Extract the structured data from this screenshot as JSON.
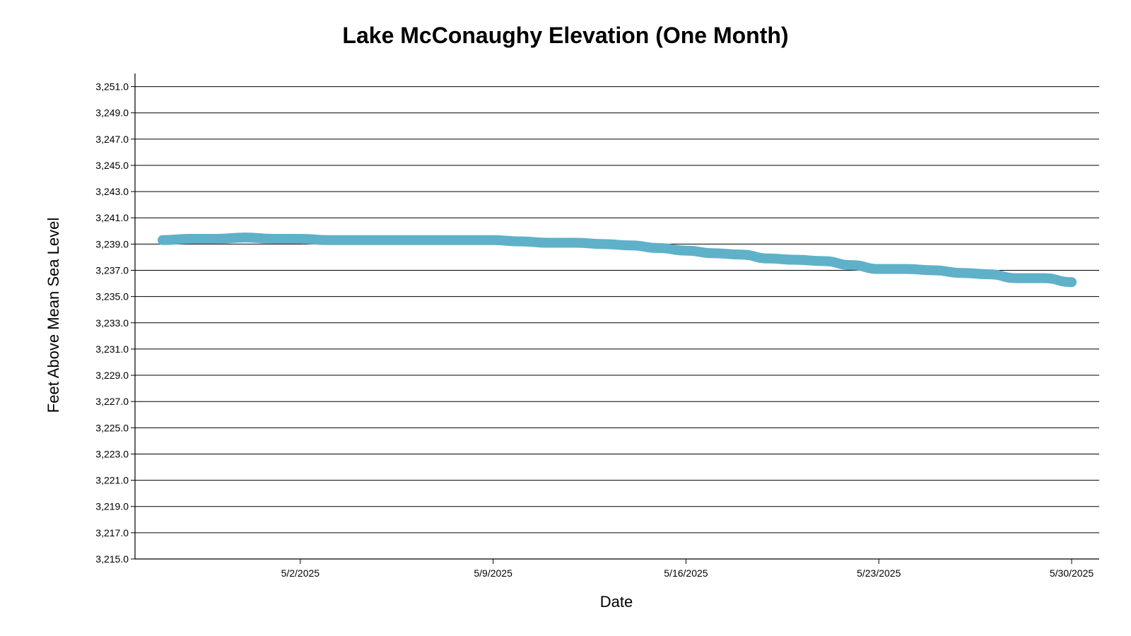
{
  "chart_data": {
    "type": "line",
    "title": "Lake McConaughy Elevation (One Month)",
    "xlabel": "Date",
    "ylabel": "Feet Above Mean Sea Level",
    "x_tick_labels": [
      "5/2/2025",
      "5/9/2025",
      "5/16/2025",
      "5/23/2025",
      "5/30/2025"
    ],
    "y_tick_labels": [
      "3,215.0",
      "3,217.0",
      "3,219.0",
      "3,221.0",
      "3,223.0",
      "3,225.0",
      "3,227.0",
      "3,229.0",
      "3,231.0",
      "3,233.0",
      "3,235.0",
      "3,237.0",
      "3,239.0",
      "3,241.0",
      "3,243.0",
      "3,245.0",
      "3,247.0",
      "3,249.0",
      "3,251.0"
    ],
    "xlim": [
      "2025-04-26",
      "2025-05-31"
    ],
    "ylim": [
      3215,
      3252
    ],
    "grid": true,
    "series": [
      {
        "color": "#5fb1c9",
        "points": [
          [
            "2025-04-27",
            3239.3
          ],
          [
            "2025-04-28",
            3239.4
          ],
          [
            "2025-04-29",
            3239.4
          ],
          [
            "2025-04-30",
            3239.5
          ],
          [
            "2025-05-01",
            3239.4
          ],
          [
            "2025-05-02",
            3239.4
          ],
          [
            "2025-05-03",
            3239.3
          ],
          [
            "2025-05-04",
            3239.3
          ],
          [
            "2025-05-05",
            3239.3
          ],
          [
            "2025-05-06",
            3239.3
          ],
          [
            "2025-05-07",
            3239.3
          ],
          [
            "2025-05-08",
            3239.3
          ],
          [
            "2025-05-09",
            3239.3
          ],
          [
            "2025-05-10",
            3239.2
          ],
          [
            "2025-05-11",
            3239.1
          ],
          [
            "2025-05-12",
            3239.1
          ],
          [
            "2025-05-13",
            3239.0
          ],
          [
            "2025-05-14",
            3238.9
          ],
          [
            "2025-05-15",
            3238.7
          ],
          [
            "2025-05-16",
            3238.5
          ],
          [
            "2025-05-17",
            3238.3
          ],
          [
            "2025-05-18",
            3238.2
          ],
          [
            "2025-05-19",
            3237.9
          ],
          [
            "2025-05-20",
            3237.8
          ],
          [
            "2025-05-21",
            3237.7
          ],
          [
            "2025-05-22",
            3237.4
          ],
          [
            "2025-05-23",
            3237.1
          ],
          [
            "2025-05-24",
            3237.1
          ],
          [
            "2025-05-25",
            3237.0
          ],
          [
            "2025-05-26",
            3236.8
          ],
          [
            "2025-05-27",
            3236.7
          ],
          [
            "2025-05-28",
            3236.4
          ],
          [
            "2025-05-29",
            3236.4
          ],
          [
            "2025-05-30",
            3236.1
          ]
        ]
      }
    ]
  }
}
